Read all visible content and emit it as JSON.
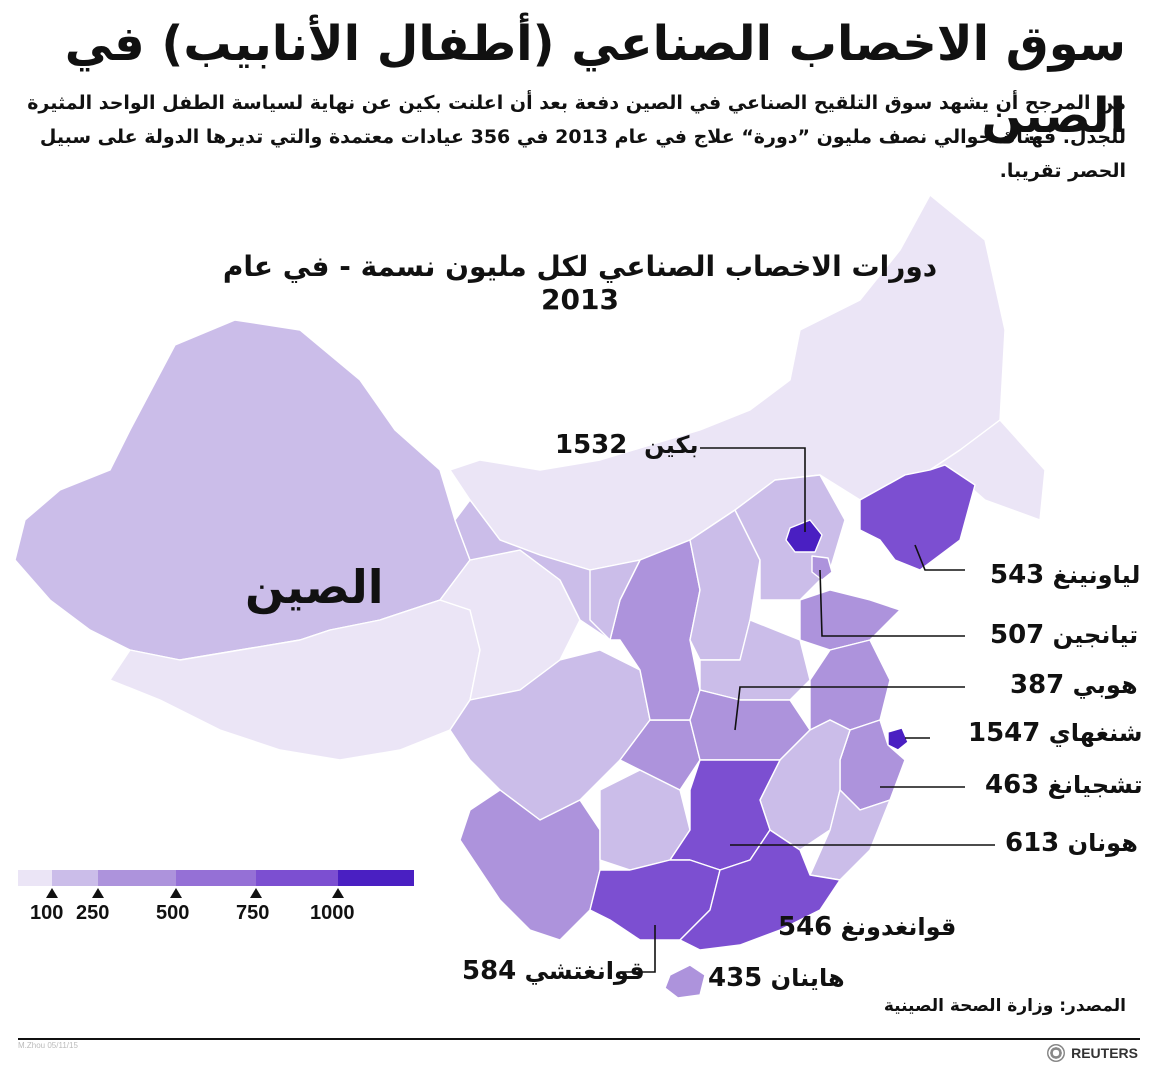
{
  "header": {
    "title": "سوق الاخصاب الصناعي (أطفال الأنابيب) في الصين",
    "intro": "من المرجح أن يشهد سوق التلقيح الصناعي في الصين دفعة بعد أن اعلنت بكين عن نهاية لسياسة الطفل الواحد المثيرة للجدل. فهناك حوالي نصف مليون ”دورة“ علاج في عام 2013 في 356 عيادات معتمدة والتي تديرها الدولة على سبيل الحصر تقريبا."
  },
  "map": {
    "subtitle": "دورات الاخصاب الصناعي لكل مليون نسمة - في عام 2013",
    "country_label": "الصين",
    "regions": [
      {
        "name": "بكين",
        "value": 1532,
        "label": "بكين",
        "value_text": "1532"
      },
      {
        "name": "لياونينغ",
        "value": 543,
        "label": "لياونينغ",
        "value_text": "543"
      },
      {
        "name": "تيانجين",
        "value": 507,
        "label": "تيانجين",
        "value_text": "507"
      },
      {
        "name": "هوبي",
        "value": 387,
        "label": "هوبي",
        "value_text": "387"
      },
      {
        "name": "شنغهاي",
        "value": 1547,
        "label": "شنغهاي",
        "value_text": "1547"
      },
      {
        "name": "تشجيانغ",
        "value": 463,
        "label": "تشجيانغ",
        "value_text": "463"
      },
      {
        "name": "هونان",
        "value": 613,
        "label": "هونان",
        "value_text": "613"
      },
      {
        "name": "قوانغدونغ",
        "value": 546,
        "label": "قوانغدونغ",
        "value_text": "546"
      },
      {
        "name": "قوانغتشي",
        "value": 584,
        "label": "قوانغتشي",
        "value_text": "584"
      },
      {
        "name": "هاينان",
        "value": 435,
        "label": "هاينان",
        "value_text": "435"
      }
    ]
  },
  "legend": {
    "breaks": [
      "100",
      "250",
      "500",
      "750",
      "1000"
    ],
    "colors": [
      "#ebe5f6",
      "#cbbde9",
      "#ad93dc",
      "#9570d6",
      "#7c4fd1",
      "#4a1fc2"
    ]
  },
  "footer": {
    "source": "المصدر: وزارة الصحة الصينية",
    "credit": "M.Zhou 05/11/15",
    "brand": "REUTERS"
  }
}
